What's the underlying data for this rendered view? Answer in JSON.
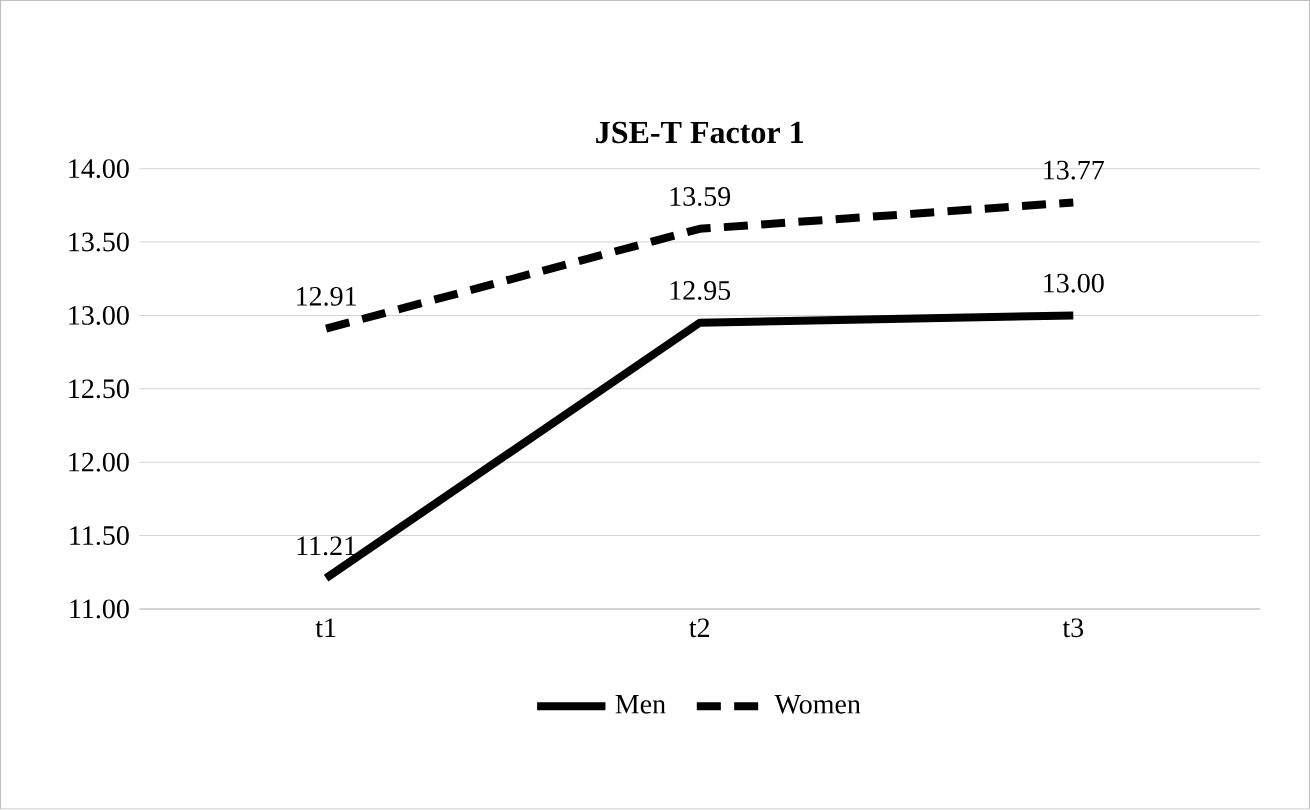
{
  "chart_data": {
    "type": "line",
    "title": "JSE-T Factor 1",
    "categories": [
      "t1",
      "t2",
      "t3"
    ],
    "series": [
      {
        "name": "Men",
        "color": "#000000",
        "line_style": "solid",
        "values": [
          11.21,
          12.95,
          13.0
        ],
        "value_labels": [
          "11.21",
          "12.95",
          "13.00"
        ]
      },
      {
        "name": "Women",
        "color": "#000000",
        "line_style": "dashed",
        "values": [
          12.91,
          13.59,
          13.77
        ],
        "value_labels": [
          "12.91",
          "13.59",
          "13.77"
        ]
      }
    ],
    "ylim": [
      11,
      14
    ],
    "yticks": [
      {
        "value": 11,
        "label": "11.00"
      },
      {
        "value": 11.5,
        "label": "11.50"
      },
      {
        "value": 12,
        "label": "12.00"
      },
      {
        "value": 12.5,
        "label": "12.50"
      },
      {
        "value": 13,
        "label": "13.00"
      },
      {
        "value": 13.5,
        "label": "13.50"
      },
      {
        "value": 14,
        "label": "14.00"
      }
    ],
    "grid": "y",
    "legend": "bottom",
    "marker": "none"
  }
}
